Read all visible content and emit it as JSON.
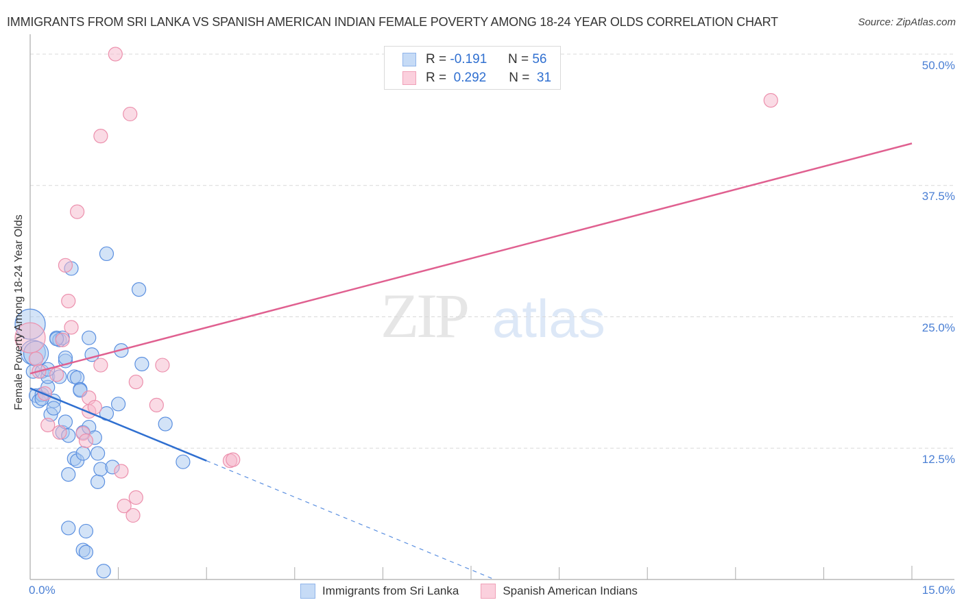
{
  "title": "IMMIGRANTS FROM SRI LANKA VS SPANISH AMERICAN INDIAN FEMALE POVERTY AMONG 18-24 YEAR OLDS CORRELATION CHART",
  "source": "Source: ZipAtlas.com",
  "watermark": {
    "zip": "ZIP",
    "atlas": "atlas"
  },
  "axes": {
    "y_label": "Female Poverty Among 18-24 Year Olds",
    "y_ticks": [
      "50.0%",
      "37.5%",
      "25.0%",
      "12.5%"
    ],
    "x_ticks": [
      "0.0%",
      "15.0%"
    ]
  },
  "legend": {
    "rows": [
      {
        "r_label": "R =",
        "r_value": "-0.191",
        "n_label": "N =",
        "n_value": "56",
        "color": "#a8c8f0"
      },
      {
        "r_label": "R =",
        "r_value": "0.292",
        "n_label": "N =",
        "n_value": "31",
        "color": "#f5b8cb"
      }
    ]
  },
  "bottom_legend": [
    {
      "label": "Immigrants from Sri Lanka",
      "color": "#a8c8f0"
    },
    {
      "label": "Spanish American Indians",
      "color": "#f5b8cb"
    }
  ],
  "colors": {
    "blue": "#2f6fd0",
    "blue_fill": "#a8c8f0",
    "pink": "#e06090",
    "pink_fill": "#f5b8cb",
    "tick_text": "#4a7fd4"
  },
  "chart_data": {
    "type": "scatter",
    "title": "Immigrants from Sri Lanka vs Spanish American Indian Female Poverty Among 18-24 Year Olds Correlation Chart",
    "xlabel": "",
    "ylabel": "Female Poverty Among 18-24 Year Olds",
    "xlim": [
      0,
      15
    ],
    "ylim": [
      0,
      50
    ],
    "x_ticks": [
      0,
      15
    ],
    "y_ticks": [
      12.5,
      25,
      37.5,
      50
    ],
    "grid": "horizontal dashed",
    "legend_position": "top-center",
    "series": [
      {
        "name": "Immigrants from Sri Lanka",
        "color": "#a8c8f0",
        "R": -0.191,
        "N": 56,
        "trend": {
          "x": [
            0,
            3.0
          ],
          "y": [
            18.2,
            11.3
          ],
          "extended_dashed_to": [
            7.9,
            0
          ]
        },
        "points": [
          [
            0.0,
            24.3
          ],
          [
            0.05,
            21.6
          ],
          [
            0.05,
            19.8
          ],
          [
            0.1,
            17.5
          ],
          [
            0.15,
            17.0
          ],
          [
            0.2,
            17.6
          ],
          [
            0.3,
            18.3
          ],
          [
            0.2,
            19.8
          ],
          [
            0.3,
            19.3
          ],
          [
            0.3,
            20.0
          ],
          [
            0.35,
            15.7
          ],
          [
            0.4,
            17.0
          ],
          [
            0.45,
            23.0
          ],
          [
            0.5,
            19.3
          ],
          [
            0.5,
            22.8
          ],
          [
            0.4,
            16.3
          ],
          [
            0.55,
            14.0
          ],
          [
            0.55,
            23.0
          ],
          [
            0.6,
            20.8
          ],
          [
            0.6,
            15.0
          ],
          [
            0.6,
            21.1
          ],
          [
            0.65,
            13.7
          ],
          [
            0.65,
            10.0
          ],
          [
            0.65,
            4.9
          ],
          [
            0.7,
            29.6
          ],
          [
            0.75,
            19.3
          ],
          [
            0.75,
            11.5
          ],
          [
            0.8,
            11.3
          ],
          [
            0.8,
            19.2
          ],
          [
            0.85,
            18.1
          ],
          [
            0.85,
            18.0
          ],
          [
            0.9,
            12.0
          ],
          [
            0.9,
            14.0
          ],
          [
            0.95,
            4.6
          ],
          [
            0.9,
            2.8
          ],
          [
            0.95,
            2.6
          ],
          [
            1.0,
            23.0
          ],
          [
            1.0,
            14.5
          ],
          [
            1.05,
            21.4
          ],
          [
            1.1,
            13.5
          ],
          [
            1.15,
            12.0
          ],
          [
            1.15,
            9.3
          ],
          [
            1.2,
            10.5
          ],
          [
            1.3,
            15.8
          ],
          [
            1.25,
            0.8
          ],
          [
            1.3,
            31.0
          ],
          [
            1.4,
            10.7
          ],
          [
            1.5,
            16.7
          ],
          [
            1.55,
            21.8
          ],
          [
            1.85,
            27.6
          ],
          [
            1.9,
            20.5
          ],
          [
            2.3,
            14.8
          ],
          [
            2.6,
            11.2
          ],
          [
            0.1,
            21.5
          ],
          [
            0.45,
            22.9
          ],
          [
            0.2,
            17.2
          ]
        ]
      },
      {
        "name": "Spanish American Indians",
        "color": "#f5b8cb",
        "R": 0.292,
        "N": 31,
        "trend": {
          "x": [
            0,
            15
          ],
          "y": [
            19.6,
            41.5
          ]
        },
        "points": [
          [
            0.0,
            23.0
          ],
          [
            0.1,
            21.0
          ],
          [
            0.15,
            19.8
          ],
          [
            0.25,
            17.7
          ],
          [
            0.3,
            14.7
          ],
          [
            0.45,
            19.5
          ],
          [
            0.5,
            14.0
          ],
          [
            0.55,
            22.8
          ],
          [
            0.6,
            29.9
          ],
          [
            0.65,
            26.5
          ],
          [
            0.7,
            24.0
          ],
          [
            0.8,
            35.0
          ],
          [
            0.9,
            13.9
          ],
          [
            0.95,
            13.2
          ],
          [
            1.0,
            17.3
          ],
          [
            1.0,
            16.0
          ],
          [
            1.1,
            16.4
          ],
          [
            1.2,
            42.2
          ],
          [
            1.2,
            20.4
          ],
          [
            1.45,
            50.0
          ],
          [
            1.55,
            10.3
          ],
          [
            1.6,
            7.0
          ],
          [
            1.7,
            44.3
          ],
          [
            1.75,
            6.1
          ],
          [
            1.8,
            7.8
          ],
          [
            1.8,
            18.8
          ],
          [
            2.15,
            16.6
          ],
          [
            2.25,
            20.4
          ],
          [
            3.4,
            11.3
          ],
          [
            3.45,
            11.4
          ],
          [
            12.6,
            45.6
          ]
        ]
      }
    ]
  }
}
